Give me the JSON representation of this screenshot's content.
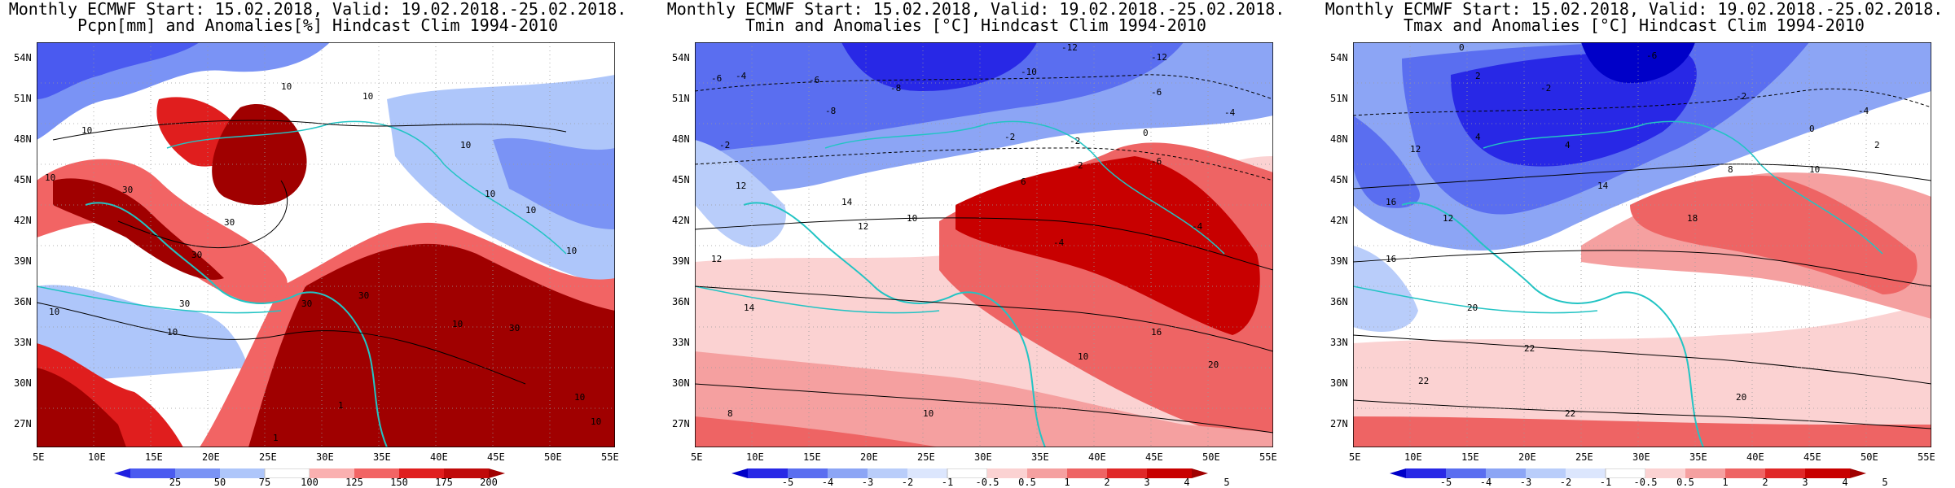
{
  "panels": [
    {
      "title_line1": "Monthly ECMWF Start: 15.02.2018, Valid: 19.02.2018.-25.02.2018.",
      "title_line2": "Pcpn[mm] and Anomalies[%] Hindcast Clim 1994-2010",
      "lat_labels": [
        "54N",
        "51N",
        "48N",
        "45N",
        "42N",
        "39N",
        "36N",
        "33N",
        "30N",
        "27N"
      ],
      "lon_labels": [
        "5E",
        "10E",
        "15E",
        "20E",
        "25E",
        "30E",
        "35E",
        "40E",
        "45E",
        "50E",
        "55E"
      ],
      "contour_labels": [
        "10",
        "10",
        "10",
        "10",
        "10",
        "10",
        "10",
        "10",
        "30",
        "30",
        "30",
        "30",
        "30",
        "30",
        "10",
        "10",
        "10",
        "30",
        "10",
        "1",
        "1",
        "10"
      ],
      "colorbar_labels": [
        "25",
        "50",
        "75",
        "100",
        "125",
        "150",
        "175",
        "200"
      ],
      "colorbar_colors": [
        "#1f1fe0",
        "#4a5af0",
        "#7a93f5",
        "#aec6fa",
        "#ffffff",
        "#fab0b0",
        "#f26464",
        "#e01e1e",
        "#a00000"
      ],
      "field_colors": {
        "wet": "#a00000",
        "moist": "#e01e1e",
        "near": "#ffffff",
        "dry": "#7a93f5",
        "verydry": "#4a5af0"
      }
    },
    {
      "title_line1": "Monthly ECMWF Start: 15.02.2018, Valid: 19.02.2018.-25.02.2018.",
      "title_line2": "Tmin and Anomalies [°C] Hindcast Clim 1994-2010",
      "lat_labels": [
        "54N",
        "51N",
        "48N",
        "45N",
        "42N",
        "39N",
        "36N",
        "33N",
        "30N",
        "27N"
      ],
      "lon_labels": [
        "5E",
        "10E",
        "15E",
        "20E",
        "25E",
        "30E",
        "35E",
        "40E",
        "45E",
        "50E",
        "55E"
      ],
      "contour_labels": [
        "-12",
        "-12",
        "-10",
        "-8",
        "-6",
        "-4",
        "-4",
        "-6",
        "-6",
        "-8",
        "-2",
        "0",
        "-2",
        "2",
        "6",
        "10",
        "12",
        "14",
        "14",
        "-2",
        "-4",
        "-6",
        "-4",
        "12",
        "10",
        "16",
        "20",
        "10",
        "8",
        "12"
      ],
      "colorbar_labels": [
        "-5",
        "-4",
        "-3",
        "-2",
        "-1",
        "-0.5",
        "0.5",
        "1",
        "2",
        "3",
        "4",
        "5"
      ],
      "colorbar_colors": [
        "#0000c8",
        "#2828e6",
        "#5a6ef0",
        "#8ca5f5",
        "#b9cdfa",
        "#dce6fd",
        "#ffffff",
        "#fbd2d2",
        "#f5a0a0",
        "#ee6464",
        "#e02828",
        "#c80000",
        "#a00000"
      ]
    },
    {
      "title_line1": "Monthly ECMWF Start: 15.02.2018, Valid: 19.02.2018.-25.02.2018.",
      "title_line2": "Tmax and Anomalies [°C] Hindcast Clim 1994-2010",
      "lat_labels": [
        "54N",
        "51N",
        "48N",
        "45N",
        "42N",
        "39N",
        "36N",
        "33N",
        "30N",
        "27N"
      ],
      "lon_labels": [
        "5E",
        "10E",
        "15E",
        "20E",
        "25E",
        "30E",
        "35E",
        "40E",
        "45E",
        "50E",
        "55E"
      ],
      "contour_labels": [
        "0",
        "-4",
        "-6",
        "2",
        "-2",
        "-2",
        "0",
        "4",
        "2",
        "4",
        "8",
        "10",
        "12",
        "14",
        "16",
        "16",
        "18",
        "20",
        "22",
        "22",
        "20",
        "22",
        "12"
      ],
      "colorbar_labels": [
        "-5",
        "-4",
        "-3",
        "-2",
        "-1",
        "-0.5",
        "0.5",
        "1",
        "2",
        "3",
        "4",
        "5"
      ],
      "colorbar_colors": [
        "#0000c8",
        "#2828e6",
        "#5a6ef0",
        "#8ca5f5",
        "#b9cdfa",
        "#dce6fd",
        "#ffffff",
        "#fbd2d2",
        "#f5a0a0",
        "#ee6464",
        "#e02828",
        "#c80000",
        "#a00000"
      ]
    }
  ]
}
